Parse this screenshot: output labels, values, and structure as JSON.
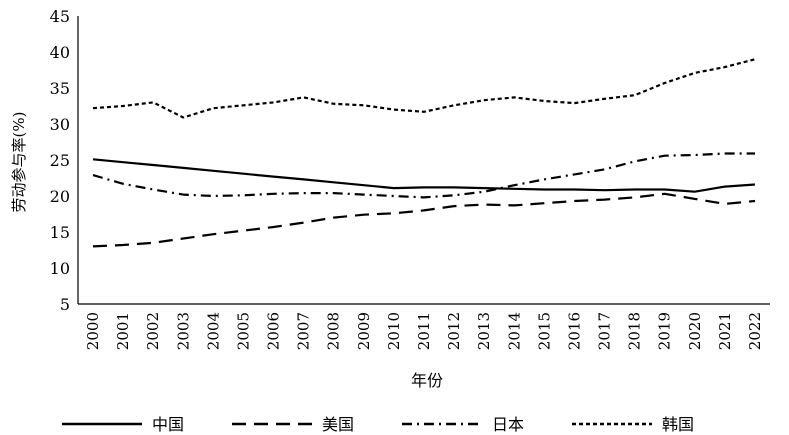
{
  "chart_data": {
    "type": "line",
    "title": "",
    "xlabel": "年份",
    "ylabel": "劳动参与率(%)",
    "ylim": [
      5,
      45
    ],
    "yticks": [
      5,
      10,
      15,
      20,
      25,
      30,
      35,
      40,
      45
    ],
    "grid": false,
    "legend_position": "bottom",
    "x": [
      "2000",
      "2001",
      "2002",
      "2003",
      "2004",
      "2005",
      "2006",
      "2007",
      "2008",
      "2009",
      "2010",
      "2011",
      "2012",
      "2013",
      "2014",
      "2015",
      "2016",
      "2017",
      "2018",
      "2019",
      "2020",
      "2021",
      "2022"
    ],
    "series": [
      {
        "name": "中国",
        "style": "solid",
        "values": [
          25.1,
          24.7,
          24.3,
          23.9,
          23.5,
          23.1,
          22.7,
          22.3,
          21.9,
          21.5,
          21.1,
          21.2,
          21.2,
          21.1,
          21.0,
          20.9,
          20.9,
          20.8,
          20.9,
          20.9,
          20.6,
          21.3,
          21.6
        ]
      },
      {
        "name": "美国",
        "style": "dashed",
        "values": [
          13.0,
          13.2,
          13.5,
          14.1,
          14.7,
          15.2,
          15.7,
          16.3,
          17.0,
          17.4,
          17.6,
          18.0,
          18.6,
          18.8,
          18.7,
          19.0,
          19.3,
          19.5,
          19.8,
          20.3,
          19.6,
          18.9,
          19.3
        ]
      },
      {
        "name": "日本",
        "style": "dashdot",
        "values": [
          22.9,
          21.7,
          20.9,
          20.2,
          20.0,
          20.1,
          20.3,
          20.4,
          20.4,
          20.2,
          20.0,
          19.8,
          20.1,
          20.6,
          21.5,
          22.3,
          23.0,
          23.7,
          24.8,
          25.6,
          25.7,
          25.9,
          25.9
        ]
      },
      {
        "name": "韩国",
        "style": "dotted",
        "values": [
          32.2,
          32.5,
          33.0,
          30.9,
          32.2,
          32.6,
          33.0,
          33.7,
          32.8,
          32.6,
          32.0,
          31.7,
          32.6,
          33.3,
          33.7,
          33.2,
          32.9,
          33.5,
          34.0,
          35.7,
          37.1,
          37.9,
          39.0
        ]
      }
    ]
  }
}
